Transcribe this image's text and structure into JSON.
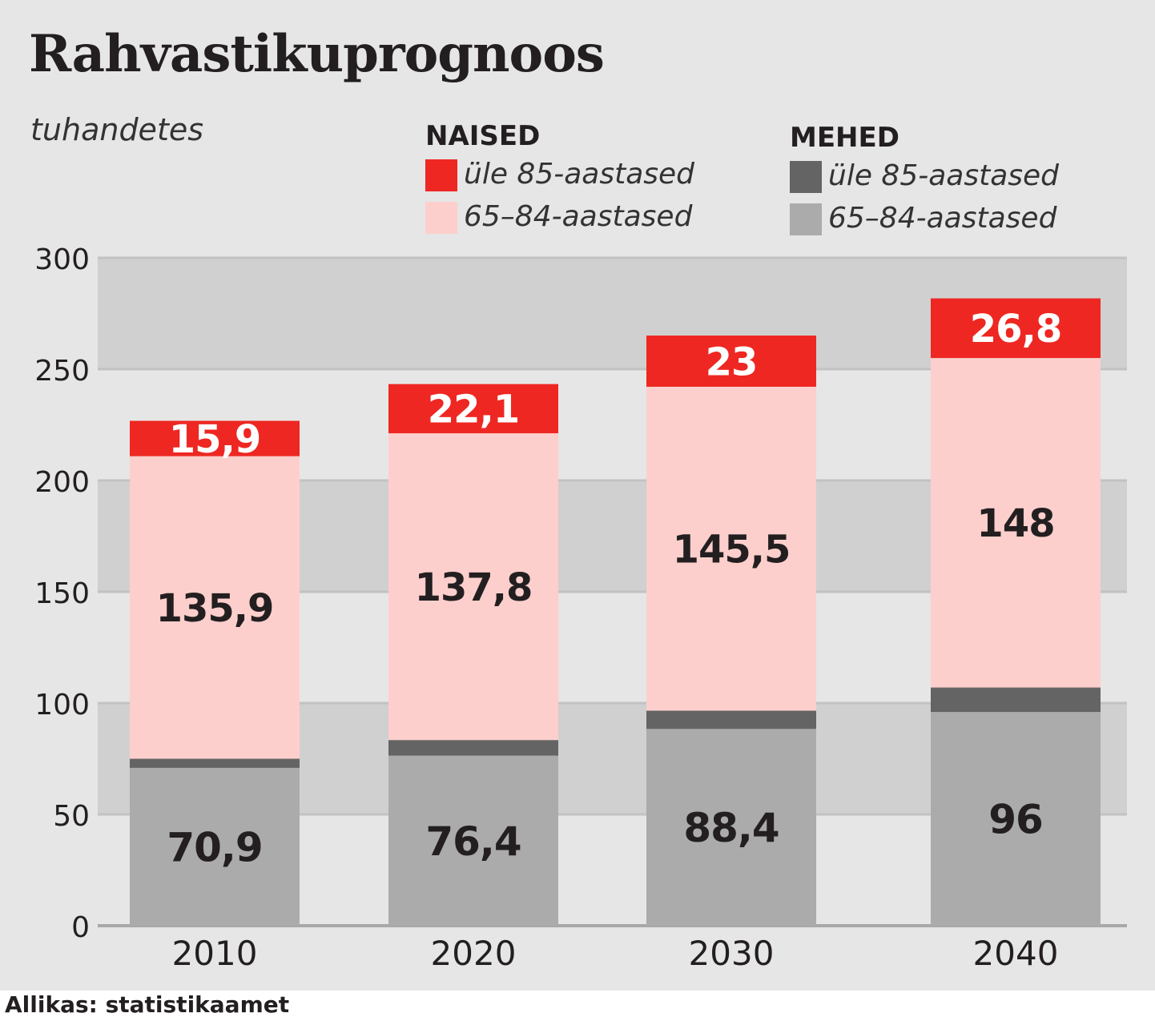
{
  "title": "Rahvastikuprognoos",
  "subtitle": "tuhandetes",
  "source": "Allikas: statistikaamet",
  "legend": {
    "women": {
      "heading": "NAISED",
      "items": [
        {
          "label": "üle 85-aastased",
          "color": "#ee2722"
        },
        {
          "label": "65–84-aastased",
          "color": "#fccfcc"
        }
      ]
    },
    "men": {
      "heading": "MEHED",
      "items": [
        {
          "label": "üle 85-aastased",
          "color": "#646464"
        },
        {
          "label": "65–84-aastased",
          "color": "#ababab"
        }
      ]
    }
  },
  "chart_data": {
    "type": "bar",
    "stacked": true,
    "categories": [
      "2010",
      "2020",
      "2030",
      "2040"
    ],
    "y_ticks": [
      "0",
      "50",
      "100",
      "150",
      "200",
      "250",
      "300"
    ],
    "ylim": [
      0,
      300
    ],
    "series": [
      {
        "name": "MEHED 65–84-aastased",
        "color": "#ababab",
        "label_color": "#231f20",
        "values": [
          70.9,
          76.4,
          88.4,
          96
        ],
        "labels": [
          "70,9",
          "76,4",
          "88,4",
          "96"
        ]
      },
      {
        "name": "MEHED üle 85-aastased",
        "color": "#646464",
        "label_color": "#7a7a5a",
        "values": [
          4.1,
          7,
          8.2,
          11
        ],
        "labels": [
          "4,1",
          "7",
          "8,2",
          "11"
        ]
      },
      {
        "name": "NAISED 65–84-aastased",
        "color": "#fccfcc",
        "label_color": "#231f20",
        "values": [
          135.9,
          137.8,
          145.5,
          148
        ],
        "labels": [
          "135,9",
          "137,8",
          "145,5",
          "148"
        ]
      },
      {
        "name": "NAISED üle 85-aastased",
        "color": "#ee2722",
        "label_color": "#ffffff",
        "values": [
          15.9,
          22.1,
          23,
          26.8
        ],
        "labels": [
          "15,9",
          "22,1",
          "23",
          "26,8"
        ]
      }
    ]
  }
}
